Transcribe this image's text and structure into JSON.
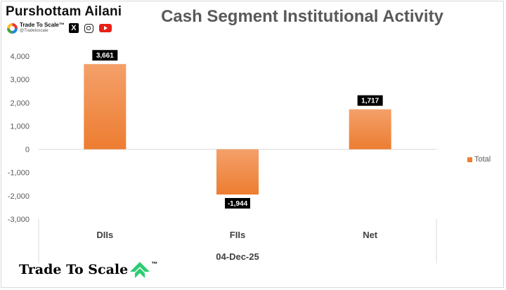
{
  "brand": {
    "name": "Purshottam Ailani",
    "handle_main": "Trade To Scale",
    "handle_tm": "™",
    "handle_sub": "@Tradetoscale",
    "social_x": "X"
  },
  "footer": {
    "brand_text": "Trade To Scale",
    "tm": "™",
    "arrow_color": "#2ecc71"
  },
  "chart_data": {
    "type": "bar",
    "title": "Cash Segment Institutional Activity",
    "categories": [
      "DIIs",
      "FIIs",
      "Net"
    ],
    "series": [
      {
        "name": "Total",
        "values": [
          3661,
          -1944,
          1717
        ]
      }
    ],
    "data_labels": [
      "3,661",
      "-1,944",
      "1,717"
    ],
    "xlabel": "04-Dec-25",
    "ylabel": "",
    "ylim": [
      -3000,
      4000
    ],
    "yticks": [
      4000,
      3000,
      2000,
      1000,
      0,
      -1000,
      -2000,
      -3000
    ],
    "ytick_labels": [
      "4,000",
      "3,000",
      "2,000",
      "1,000",
      "0",
      "-1,000",
      "-2,000",
      "-3,000"
    ],
    "legend_position": "right",
    "grid": false,
    "bar_color": "#ed7d31",
    "bar_color_light": "#f4a06a"
  }
}
